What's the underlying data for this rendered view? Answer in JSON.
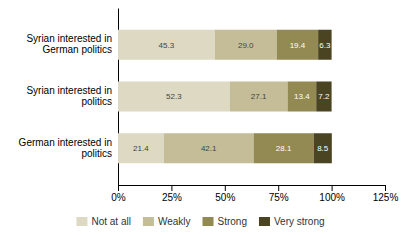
{
  "chart_data": {
    "type": "bar",
    "orientation": "horizontal",
    "stacked": true,
    "data_labels": true,
    "legend": "bottom",
    "categories": [
      "Syrian interested in German politics",
      "Syrian interested in politics",
      "German interested in politics"
    ],
    "series": [
      {
        "name": "Not at all",
        "color": "#ddd9c3",
        "values": [
          45.3,
          52.3,
          21.4
        ],
        "value_labels": [
          "45.3",
          "52.3",
          "21.4"
        ]
      },
      {
        "name": "Weakly",
        "color": "#c4bd97",
        "values": [
          29.0,
          27.1,
          42.1
        ],
        "value_labels": [
          "29.0",
          "27.1",
          "42.1"
        ]
      },
      {
        "name": "Strong",
        "color": "#938953",
        "values": [
          19.4,
          13.4,
          28.1
        ],
        "value_labels": [
          "19.4",
          "13.4",
          "28.1"
        ]
      },
      {
        "name": "Very strong",
        "color": "#4a4422",
        "values": [
          6.3,
          7.2,
          8.5
        ],
        "value_labels": [
          "6.3",
          "7.2",
          "8.5"
        ]
      }
    ],
    "xlim": [
      0,
      125
    ],
    "xticks": [
      {
        "value": 0,
        "label": "0%"
      },
      {
        "value": 25,
        "label": "25%"
      },
      {
        "value": 50,
        "label": "50%"
      },
      {
        "value": 75,
        "label": "75%"
      },
      {
        "value": 100,
        "label": "100%"
      },
      {
        "value": 125,
        "label": "125%"
      }
    ]
  }
}
